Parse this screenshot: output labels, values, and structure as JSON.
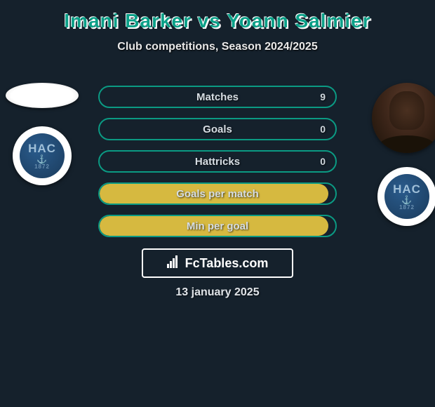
{
  "title": "Imani Barker vs Yoann Salmier",
  "subtitle": "Club competitions, Season 2024/2025",
  "colors": {
    "background": "#15212c",
    "accent": "#0ba088",
    "border": "#0b9a83",
    "text": "#d6dde3",
    "fill_yellow": "#d6b940",
    "white": "#ffffff",
    "club_blue_light": "#2a5b8c",
    "club_blue_dark": "#1a3b5c"
  },
  "players": {
    "left": {
      "name": "Imani Barker",
      "club_abbr": "HAC",
      "club_year": "1872",
      "has_photo": false
    },
    "right": {
      "name": "Yoann Salmier",
      "club_abbr": "HAC",
      "club_year": "1872",
      "has_photo": true
    }
  },
  "stats": [
    {
      "label": "Matches",
      "value": "9",
      "fill_pct": 0,
      "show_value": true
    },
    {
      "label": "Goals",
      "value": "0",
      "fill_pct": 0,
      "show_value": true
    },
    {
      "label": "Hattricks",
      "value": "0",
      "fill_pct": 0,
      "show_value": true
    },
    {
      "label": "Goals per match",
      "value": "",
      "fill_pct": 97,
      "show_value": false,
      "fill_color": "#d6b940"
    },
    {
      "label": "Min per goal",
      "value": "",
      "fill_pct": 97,
      "show_value": false,
      "fill_color": "#d6b940"
    }
  ],
  "brand": {
    "icon": "bars",
    "text": "FcTables.com"
  },
  "date": "13 january 2025"
}
